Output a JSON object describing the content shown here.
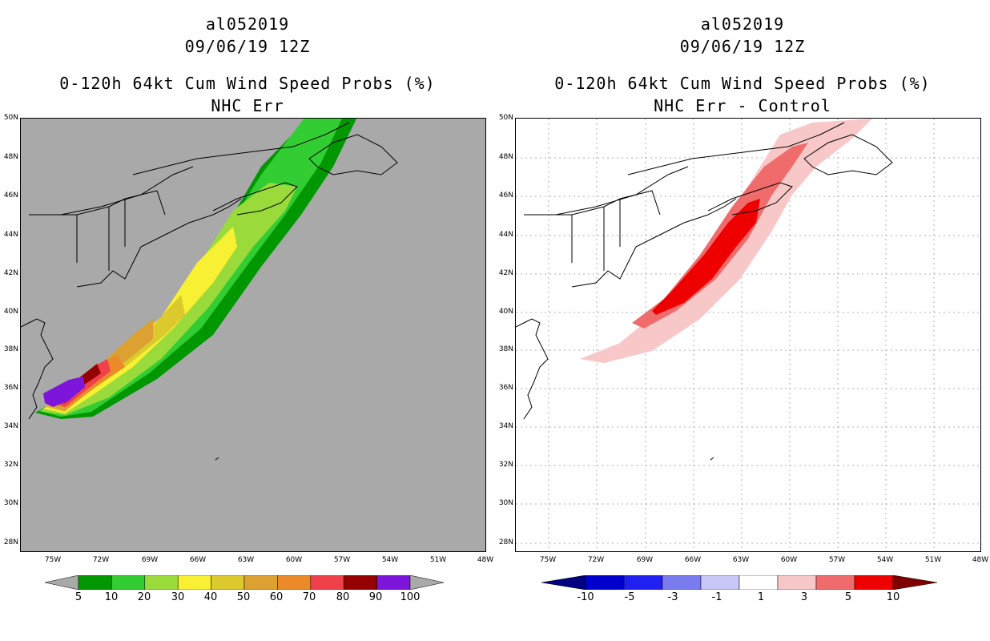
{
  "left": {
    "title_line1": "al052019",
    "title_line2": "09/06/19 12Z",
    "title_line3": "0-120h 64kt Cum Wind Speed Probs (%)",
    "title_line4": "NHC Err",
    "background_color": "#a9a9a9",
    "colorbar": {
      "labels": [
        "5",
        "10",
        "20",
        "30",
        "40",
        "50",
        "60",
        "70",
        "80",
        "90",
        "100"
      ],
      "colors": [
        "#019701",
        "#32cd32",
        "#9ada3a",
        "#f8f032",
        "#dbc92e",
        "#dca130",
        "#ea8a29",
        "#f0404a",
        "#950101",
        "#7d15da"
      ],
      "end_color": "#a9a9a9"
    }
  },
  "right": {
    "title_line1": "al052019",
    "title_line2": "09/06/19 12Z",
    "title_line3": "0-120h 64kt Cum Wind Speed Probs (%)",
    "title_line4": "NHC Err - Control",
    "background_color": "#ffffff",
    "colorbar": {
      "labels": [
        "-10",
        "-5",
        "-3",
        "-1",
        "1",
        "3",
        "5",
        "10"
      ],
      "colors": [
        "#0000cc",
        "#2020f0",
        "#7b7bf0",
        "#c8c8f8",
        "#ffffff",
        "#f8c8c8",
        "#f06c6c",
        "#ee0000"
      ],
      "left_end_color": "#000080",
      "right_end_color": "#800000"
    }
  },
  "axes": {
    "lat_labels": [
      "50N",
      "48N",
      "46N",
      "44N",
      "42N",
      "40N",
      "38N",
      "36N",
      "34N",
      "32N",
      "30N",
      "28N"
    ],
    "lon_labels": [
      "75W",
      "72W",
      "69W",
      "66W",
      "63W",
      "60W",
      "57W",
      "54W",
      "51W",
      "48W"
    ]
  }
}
